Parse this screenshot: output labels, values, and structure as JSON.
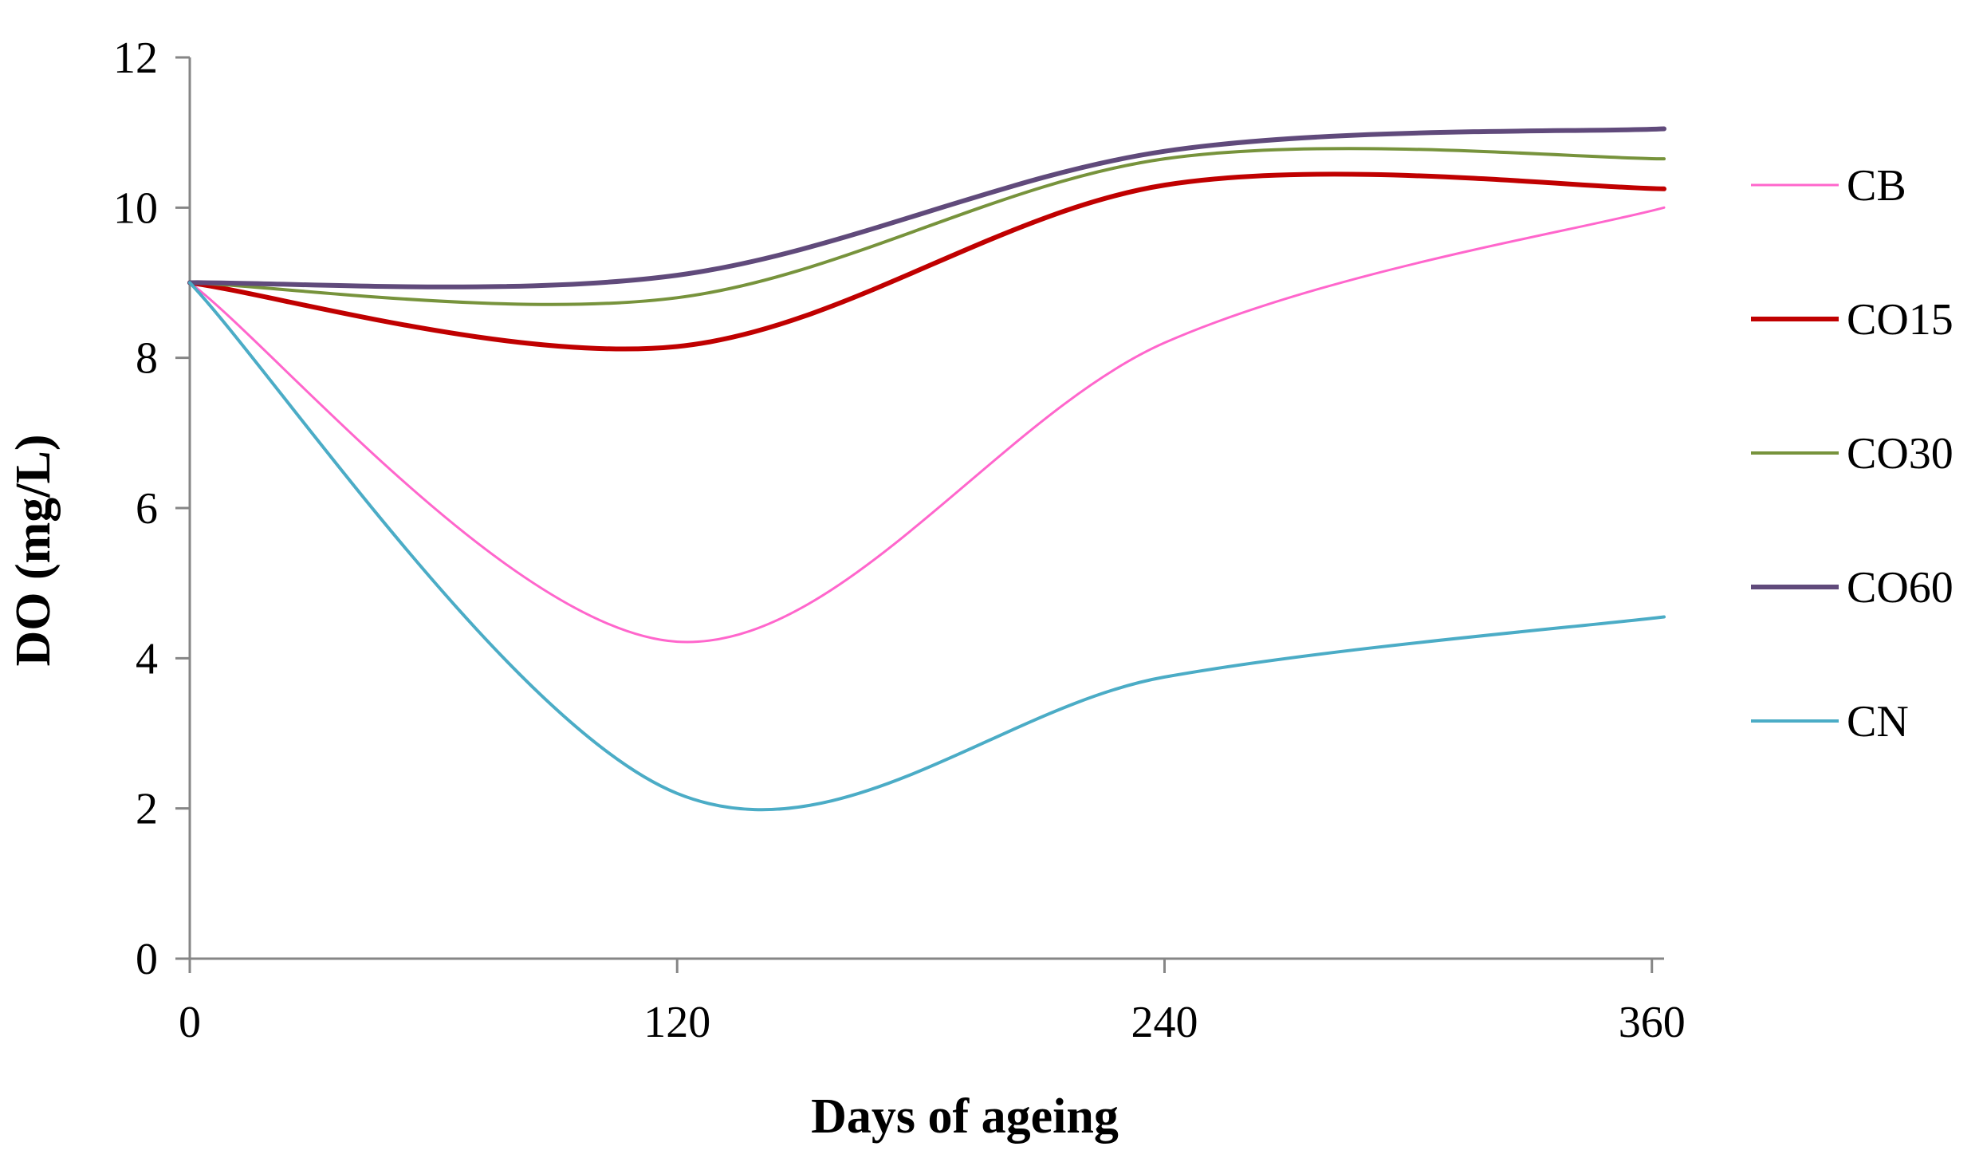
{
  "chart_data": {
    "type": "line",
    "title": "",
    "xlabel": "Days of ageing",
    "ylabel": "DO  (mg/L)",
    "xlim": [
      0,
      363
    ],
    "ylim": [
      0,
      12
    ],
    "xticks": [
      0,
      120,
      240,
      360
    ],
    "yticks": [
      0,
      2,
      4,
      6,
      8,
      10,
      12
    ],
    "x": [
      0,
      120,
      240,
      363
    ],
    "grid": false,
    "legend_position": "right",
    "series": [
      {
        "name": "CB",
        "color": "#ff66cc",
        "width": 3,
        "values": [
          9.0,
          4.22,
          8.2,
          10.0
        ]
      },
      {
        "name": "CO15",
        "color": "#c00000",
        "width": 6,
        "values": [
          9.0,
          8.15,
          10.3,
          10.25
        ]
      },
      {
        "name": "CO30",
        "color": "#77933c",
        "width": 4,
        "values": [
          9.0,
          8.8,
          10.65,
          10.65
        ]
      },
      {
        "name": "CO60",
        "color": "#604a7b",
        "width": 6,
        "values": [
          9.0,
          9.1,
          10.75,
          11.05
        ]
      },
      {
        "name": "CN",
        "color": "#4bacc6",
        "width": 4,
        "values": [
          9.0,
          2.2,
          3.75,
          4.55
        ]
      }
    ]
  }
}
